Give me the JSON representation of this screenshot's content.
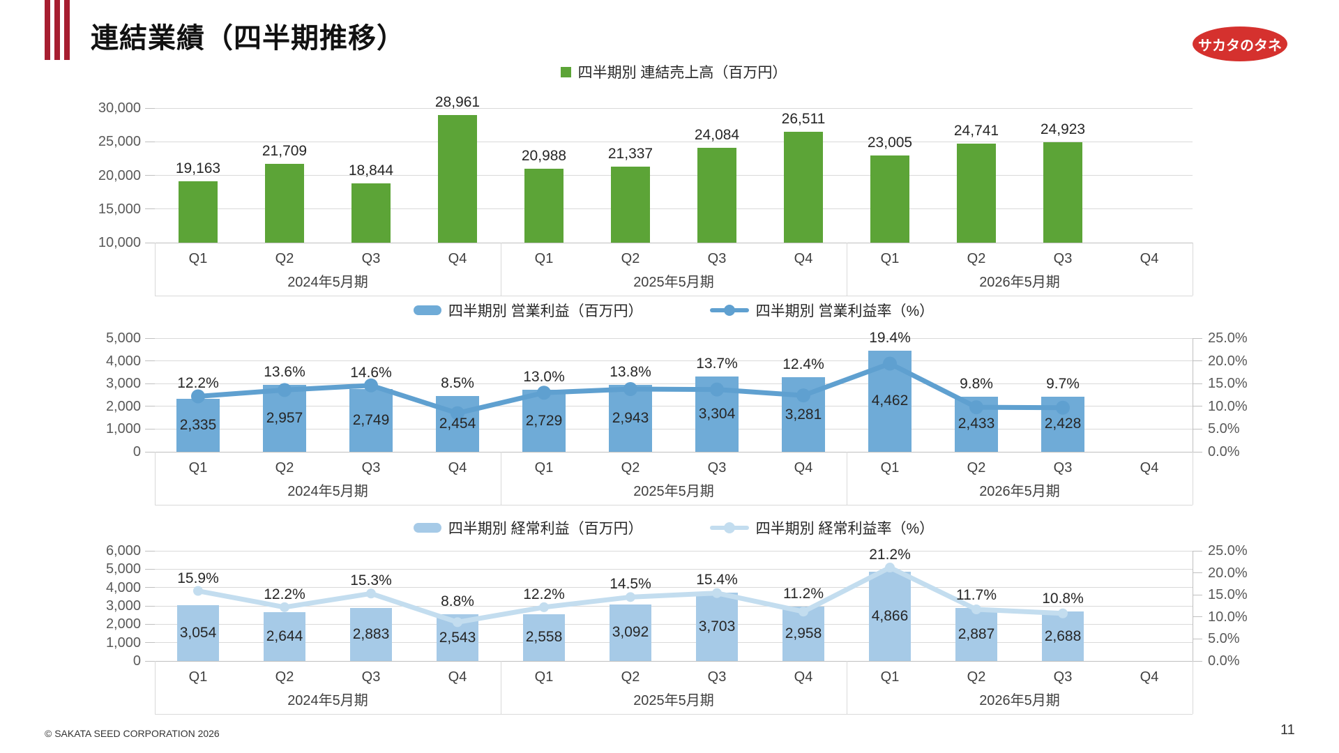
{
  "header": {
    "title": "連結業績（四半期推移）",
    "logo_text": "サカタのタネ"
  },
  "footer": {
    "copyright": "© SAKATA SEED CORPORATION 2026",
    "page_number": "11"
  },
  "colors": {
    "accent_red": "#A61E30",
    "logo_red": "#D5312E",
    "sales_green": "#5CA437",
    "op_bar_blue": "#6FABD7",
    "op_line_blue": "#5FA0D0",
    "ord_bar_blue": "#A6CAE7",
    "ord_line_blue": "#C3DDEF",
    "gridline": "#D9D9D9",
    "axis_line": "#BFBFBF"
  },
  "chart_data": [
    {
      "id": "sales",
      "type": "bar",
      "categories": [
        "Q1",
        "Q2",
        "Q3",
        "Q4",
        "Q1",
        "Q2",
        "Q3",
        "Q4",
        "Q1",
        "Q2",
        "Q3",
        "Q4"
      ],
      "groups": [
        {
          "label": "2024年5月期",
          "span": 4
        },
        {
          "label": "2025年5月期",
          "span": 4
        },
        {
          "label": "2026年5月期",
          "span": 4
        }
      ],
      "series": [
        {
          "name": "四半期別 連結売上高（百万円）",
          "type": "bar",
          "color_key": "sales_green",
          "values": [
            19163,
            21709,
            18844,
            28961,
            20988,
            21337,
            24084,
            26511,
            23005,
            24741,
            24923,
            null
          ],
          "value_labels": [
            "19,163",
            "21,709",
            "18,844",
            "28,961",
            "20,988",
            "21,337",
            "24,084",
            "26,511",
            "23,005",
            "24,741",
            "24,923",
            ""
          ]
        }
      ],
      "left_axis": {
        "min": 10000,
        "max": 30000,
        "tick_values": [
          10000,
          15000,
          20000,
          25000,
          30000
        ],
        "tick_labels": [
          "10,000",
          "15,000",
          "20,000",
          "25,000",
          "30,000"
        ]
      },
      "legend_position": "top",
      "grid": true
    },
    {
      "id": "operating-profit",
      "type": "bar+line",
      "categories": [
        "Q1",
        "Q2",
        "Q3",
        "Q4",
        "Q1",
        "Q2",
        "Q3",
        "Q4",
        "Q1",
        "Q2",
        "Q3",
        "Q4"
      ],
      "groups": [
        {
          "label": "2024年5月期",
          "span": 4
        },
        {
          "label": "2025年5月期",
          "span": 4
        },
        {
          "label": "2026年5月期",
          "span": 4
        }
      ],
      "series": [
        {
          "name": "四半期別 営業利益（百万円）",
          "type": "bar",
          "color_key": "op_bar_blue",
          "axis": "left",
          "values": [
            2335,
            2957,
            2749,
            2454,
            2729,
            2943,
            3304,
            3281,
            4462,
            2433,
            2428,
            null
          ],
          "value_labels": [
            "2,335",
            "2,957",
            "2,749",
            "2,454",
            "2,729",
            "2,943",
            "3,304",
            "3,281",
            "4,462",
            "2,433",
            "2,428",
            ""
          ]
        },
        {
          "name": "四半期別 営業利益率（%）",
          "type": "line",
          "color_key": "op_line_blue",
          "axis": "right",
          "values": [
            12.2,
            13.6,
            14.6,
            8.5,
            13.0,
            13.8,
            13.7,
            12.4,
            19.4,
            9.8,
            9.7,
            null
          ],
          "value_labels": [
            "12.2%",
            "13.6%",
            "14.6%",
            "8.5%",
            "13.0%",
            "13.8%",
            "13.7%",
            "12.4%",
            "19.4%",
            "9.8%",
            "9.7%",
            ""
          ]
        }
      ],
      "left_axis": {
        "min": 0,
        "max": 5000,
        "tick_values": [
          0,
          1000,
          2000,
          3000,
          4000,
          5000
        ],
        "tick_labels": [
          "0",
          "1,000",
          "2,000",
          "3,000",
          "4,000",
          "5,000"
        ]
      },
      "right_axis": {
        "min": 0,
        "max": 25,
        "tick_values": [
          0,
          5,
          10,
          15,
          20,
          25
        ],
        "tick_labels": [
          "0.0%",
          "5.0%",
          "10.0%",
          "15.0%",
          "20.0%",
          "25.0%"
        ]
      },
      "legend_position": "top",
      "grid": true
    },
    {
      "id": "ordinary-profit",
      "type": "bar+line",
      "categories": [
        "Q1",
        "Q2",
        "Q3",
        "Q4",
        "Q1",
        "Q2",
        "Q3",
        "Q4",
        "Q1",
        "Q2",
        "Q3",
        "Q4"
      ],
      "groups": [
        {
          "label": "2024年5月期",
          "span": 4
        },
        {
          "label": "2025年5月期",
          "span": 4
        },
        {
          "label": "2026年5月期",
          "span": 4
        }
      ],
      "series": [
        {
          "name": "四半期別 経常利益（百万円）",
          "type": "bar",
          "color_key": "ord_bar_blue",
          "axis": "left",
          "values": [
            3054,
            2644,
            2883,
            2543,
            2558,
            3092,
            3703,
            2958,
            4866,
            2887,
            2688,
            null
          ],
          "value_labels": [
            "3,054",
            "2,644",
            "2,883",
            "2,543",
            "2,558",
            "3,092",
            "3,703",
            "2,958",
            "4,866",
            "2,887",
            "2,688",
            ""
          ]
        },
        {
          "name": "四半期別 経常利益率（%）",
          "type": "line",
          "color_key": "ord_line_blue",
          "axis": "right",
          "values": [
            15.9,
            12.2,
            15.3,
            8.8,
            12.2,
            14.5,
            15.4,
            11.2,
            21.2,
            11.7,
            10.8,
            null
          ],
          "value_labels": [
            "15.9%",
            "12.2%",
            "15.3%",
            "8.8%",
            "12.2%",
            "14.5%",
            "15.4%",
            "11.2%",
            "21.2%",
            "11.7%",
            "10.8%",
            ""
          ]
        }
      ],
      "left_axis": {
        "min": 0,
        "max": 6000,
        "tick_values": [
          0,
          1000,
          2000,
          3000,
          4000,
          5000,
          6000
        ],
        "tick_labels": [
          "0",
          "1,000",
          "2,000",
          "3,000",
          "4,000",
          "5,000",
          "6,000"
        ]
      },
      "right_axis": {
        "min": 0,
        "max": 25,
        "tick_values": [
          0,
          5,
          10,
          15,
          20,
          25
        ],
        "tick_labels": [
          "0.0%",
          "5.0%",
          "10.0%",
          "15.0%",
          "20.0%",
          "25.0%"
        ]
      },
      "legend_position": "top",
      "grid": true
    }
  ]
}
